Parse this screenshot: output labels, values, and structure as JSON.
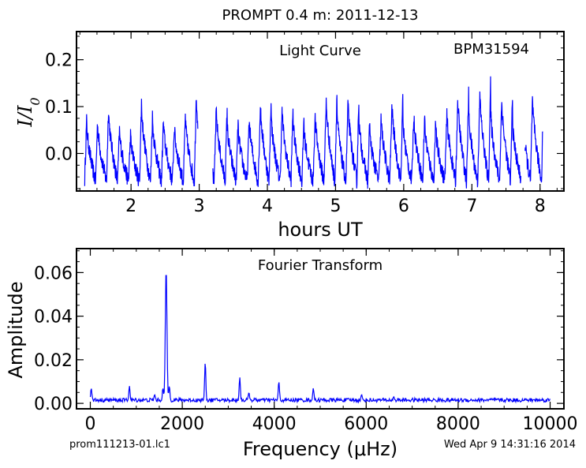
{
  "figure": {
    "title": "PROMPT 0.4 m:  2011-12-13",
    "footer_left": "prom111213-01.lc1",
    "footer_right": "Wed Apr  9 14:31:16 2014"
  },
  "chart_data": [
    {
      "type": "line",
      "annotation": "Light Curve",
      "star": "BPM31594",
      "xlabel": "hours UT",
      "ylabel": "I/I0",
      "xlim": [
        1.2,
        8.35
      ],
      "ylim": [
        -0.08,
        0.26
      ],
      "xticks": [
        2,
        3,
        4,
        5,
        6,
        7,
        8
      ],
      "yticks": [
        0.0,
        0.1,
        0.2
      ],
      "ytick_labels": [
        "0.0",
        "0.1",
        "0.2"
      ],
      "color": "#0000ff",
      "series": [
        {
          "segments": [
            {
              "t0": 1.32,
              "t1": 2.98,
              "pulse_period_hours": 0.161,
              "first_peak": 1.48
            },
            {
              "t0": 3.2,
              "t1": 7.72,
              "pulse_period_hours": 0.161,
              "first_peak": 3.22
            },
            {
              "t0": 7.78,
              "t1": 8.04,
              "pulse_period_hours": 0.161,
              "first_peak": 7.86
            }
          ],
          "peak_values": [
            0.07,
            0.07,
            0.1,
            0.05,
            0.04,
            0.11,
            0.08,
            0.07,
            0.06,
            0.08,
            0.13,
            0.09,
            0.1,
            0.07,
            0.06,
            0.08,
            0.12,
            0.09,
            0.1,
            0.08,
            0.06,
            0.09,
            0.13,
            0.1,
            0.12,
            0.08,
            0.05,
            0.09,
            0.12,
            0.08,
            0.09,
            0.07,
            0.06,
            0.1,
            0.13,
            0.1,
            0.15,
            0.1,
            0.13,
            0.07,
            0.12,
            0.13
          ],
          "trough_value": -0.06
        }
      ]
    },
    {
      "type": "line",
      "annotation": "Fourier Transform",
      "xlabel": "Frequency (μHz)",
      "ylabel": "Amplitude",
      "xlim": [
        -300,
        10300
      ],
      "ylim": [
        -0.0025,
        0.071
      ],
      "xticks": [
        0,
        2000,
        4000,
        6000,
        8000,
        10000
      ],
      "yticks": [
        0.0,
        0.02,
        0.04,
        0.06
      ],
      "ytick_labels": [
        "0.00",
        "0.02",
        "0.04",
        "0.06"
      ],
      "color": "#0000ff",
      "noise_level": 0.002,
      "peaks": [
        {
          "frequency": 1650,
          "amplitude": 0.062
        },
        {
          "frequency": 1580,
          "amplitude": 0.007
        },
        {
          "frequency": 1720,
          "amplitude": 0.008
        },
        {
          "frequency": 2500,
          "amplitude": 0.019
        },
        {
          "frequency": 3250,
          "amplitude": 0.012
        },
        {
          "frequency": 3450,
          "amplitude": 0.005
        },
        {
          "frequency": 4100,
          "amplitude": 0.01
        },
        {
          "frequency": 4850,
          "amplitude": 0.007
        },
        {
          "frequency": 20,
          "amplitude": 0.007
        },
        {
          "frequency": 850,
          "amplitude": 0.008
        },
        {
          "frequency": 1400,
          "amplitude": 0.004
        },
        {
          "frequency": 5900,
          "amplitude": 0.004
        },
        {
          "frequency": 6600,
          "amplitude": 0.003
        }
      ]
    }
  ]
}
